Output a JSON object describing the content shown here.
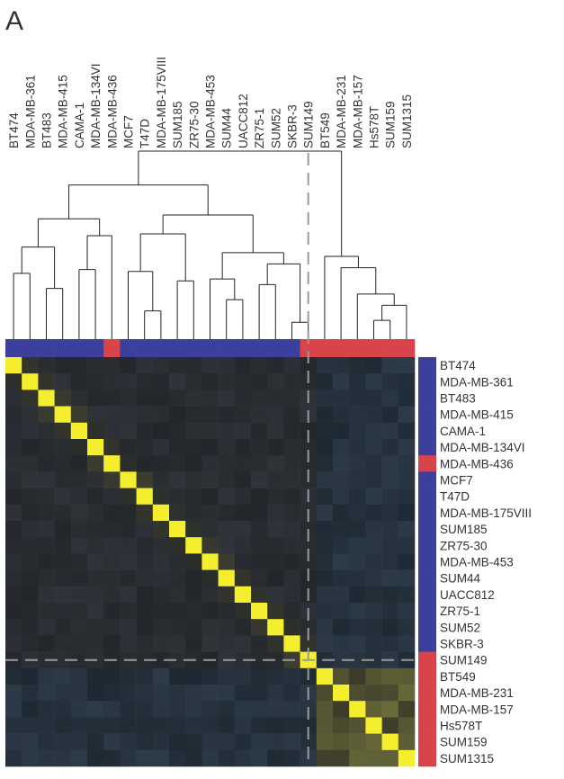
{
  "panel_label": "A",
  "colors": {
    "cluster_basal": "#d9434a",
    "cluster_luminal": "#3c3f9c",
    "diagonal": "#f5ee2e",
    "background": "#25272a",
    "dendrogram": "#222222",
    "cut_line": "#9a9a9a",
    "label": "#333333"
  },
  "chart_data": {
    "type": "heatmap",
    "title": "",
    "samples": [
      "BT474",
      "MDA-MB-361",
      "BT483",
      "MDA-MB-415",
      "CAMA-1",
      "MDA-MB-134VI",
      "MDA-MB-436",
      "MCF7",
      "T47D",
      "MDA-MB-175VIII",
      "SUM185",
      "ZR75-30",
      "MDA-MB-453",
      "SUM44",
      "UACC812",
      "ZR75-1",
      "SUM52",
      "SKBR-3",
      "SUM149",
      "BT549",
      "MDA-MB-231",
      "MDA-MB-157",
      "Hs578T",
      "SUM159",
      "SUM1315"
    ],
    "cluster_assignment": [
      "luminal",
      "luminal",
      "luminal",
      "luminal",
      "luminal",
      "luminal",
      "basal",
      "luminal",
      "luminal",
      "luminal",
      "luminal",
      "luminal",
      "luminal",
      "luminal",
      "luminal",
      "luminal",
      "luminal",
      "luminal",
      "basal",
      "basal",
      "basal",
      "basal",
      "basal",
      "basal",
      "basal"
    ],
    "cut_after_index": 18,
    "diagonal_value": 1.0,
    "off_diagonal_typical": 0.1,
    "basal_block_value": 0.45,
    "color_scale": [
      "blue",
      "black",
      "yellow"
    ],
    "dendrogram_merges": [
      {
        "a": "BT474",
        "b": "MDA-MB-361",
        "height": 0.35
      },
      {
        "a": "BT483",
        "b": "MDA-MB-415",
        "height": 0.27
      },
      {
        "a": "CAMA-1",
        "b": "MDA-MB-134VI",
        "height": 0.37
      },
      {
        "a": "merge:CAMA-1+MDA-MB-134VI",
        "b": "MDA-MB-436",
        "height": 0.17
      },
      {
        "a": "merge:BT474+MDA-MB-361",
        "b": "merge:BT483+MDA-MB-415",
        "height": 0.49
      },
      {
        "a": "merge:left1",
        "b": "merge:CAMA-1+MDA-MB-134VI+MDA-MB-436",
        "height": 0.64
      },
      {
        "a": "T47D",
        "b": "MDA-MB-175VIII",
        "height": 0.15
      },
      {
        "a": "MCF7",
        "b": "merge:T47D+MDA-MB-175VIII",
        "height": 0.36
      },
      {
        "a": "SUM185",
        "b": "ZR75-30",
        "height": 0.31
      },
      {
        "a": "merge:MCF7+T47D+MDA-MB-175VIII",
        "b": "merge:SUM185+ZR75-30",
        "height": 0.56
      },
      {
        "a": "SUM44",
        "b": "UACC812",
        "height": 0.21
      },
      {
        "a": "MDA-MB-453",
        "b": "merge:SUM44+UACC812",
        "height": 0.32
      },
      {
        "a": "ZR75-1",
        "b": "SUM52",
        "height": 0.29
      },
      {
        "a": "SKBR-3",
        "b": "SUM149",
        "height": 0.09
      },
      {
        "a": "merge:ZR75-1+SUM52",
        "b": "merge:SKBR-3+SUM149",
        "height": 0.4
      },
      {
        "a": "merge:MDA-MB-453+SUM44+UACC812",
        "b": "merge:ZR75-1+SUM52+SKBR-3+SUM149",
        "height": 0.46
      },
      {
        "a": "merge:left2",
        "b": "merge:right2",
        "height": 0.66
      },
      {
        "a": "merge:cluster1",
        "b": "merge:cluster2",
        "height": 0.82
      },
      {
        "a": "Hs578T",
        "b": "SUM159",
        "height": 0.1
      },
      {
        "a": "merge:Hs578T+SUM159",
        "b": "SUM1315",
        "height": 0.18
      },
      {
        "a": "MDA-MB-157",
        "b": "merge:Hs578T+SUM159+SUM1315",
        "height": 0.24
      },
      {
        "a": "MDA-MB-231",
        "b": "merge:MDA-MB-157+...",
        "height": 0.38
      },
      {
        "a": "BT549",
        "b": "merge:MDA-MB-231+...",
        "height": 0.44
      },
      {
        "a": "merge:luminal",
        "b": "merge:basal",
        "height": 1.0
      }
    ]
  }
}
